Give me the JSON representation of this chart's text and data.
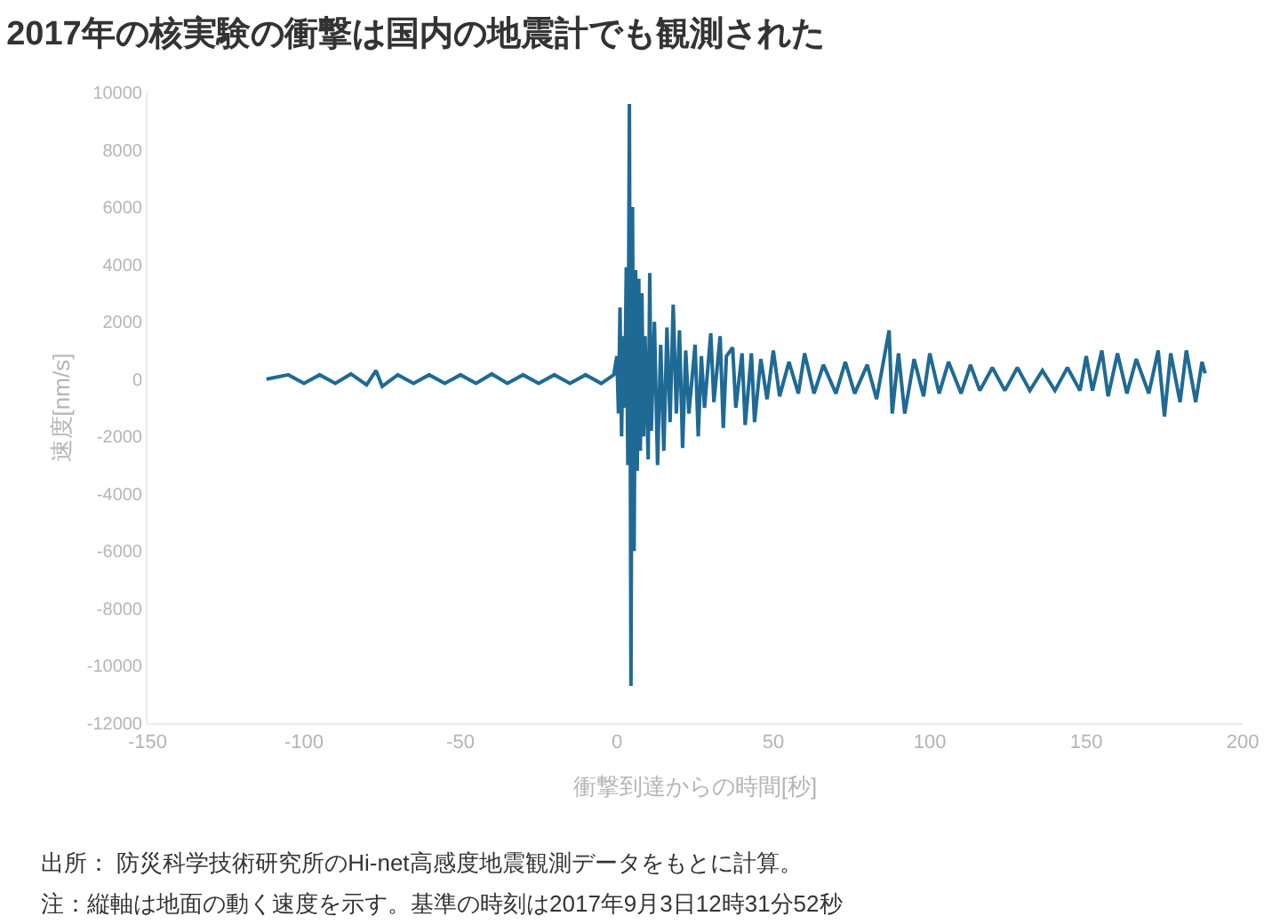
{
  "chart_data": {
    "type": "line",
    "title": "2017年の核実験の衝撃は国内の地震計でも観測された",
    "xlabel": "衝撃到達からの時間[秒]",
    "ylabel": "速度[nm/s]",
    "annotations": [
      "出所： 防災科学技術研究所のHi-net高感度地震観測データをもとに計算。",
      "注：縦軸は地面の動く速度を示す。基準の時刻は2017年9月3日12時31分52秒"
    ],
    "xlim": [
      -150,
      200
    ],
    "xticks": [
      -150,
      -100,
      -50,
      0,
      50,
      100,
      150,
      200
    ],
    "ylim": [
      -12000,
      10000
    ],
    "yticks": [
      -12000,
      -10000,
      -8000,
      -6000,
      -4000,
      -2000,
      0,
      2000,
      4000,
      6000,
      8000,
      10000
    ],
    "marker": "none",
    "line_style": "solid",
    "series": [
      {
        "color": "#1f6a95",
        "x": [
          -112,
          -105,
          -100,
          -95,
          -90,
          -85,
          -80,
          -77,
          -75,
          -70,
          -65,
          -60,
          -55,
          -50,
          -45,
          -40,
          -35,
          -30,
          -25,
          -20,
          -15,
          -10,
          -5,
          -1,
          0,
          0.5,
          1,
          1.5,
          2,
          2.5,
          3,
          3.5,
          4,
          4.5,
          5,
          5.5,
          6,
          6.5,
          7,
          7.5,
          8,
          8.5,
          9,
          10,
          10.5,
          11,
          12,
          13,
          14,
          15,
          16,
          17,
          18,
          19,
          20,
          21,
          22,
          23,
          25,
          26,
          27,
          28,
          30,
          31,
          33,
          34,
          35,
          37,
          38,
          40,
          41,
          43,
          44,
          46,
          48,
          50,
          52,
          55,
          58,
          60,
          63,
          66,
          70,
          73,
          76,
          80,
          83,
          87,
          88,
          90,
          92,
          95,
          98,
          100,
          103,
          106,
          110,
          113,
          116,
          120,
          124,
          128,
          132,
          136,
          140,
          144,
          148,
          150,
          152,
          155,
          157,
          160,
          163,
          166,
          170,
          173,
          175,
          177,
          180,
          182,
          185,
          187,
          188
        ],
        "values": [
          0,
          150,
          -150,
          150,
          -150,
          180,
          -200,
          300,
          -250,
          150,
          -150,
          150,
          -150,
          150,
          -150,
          180,
          -150,
          150,
          -150,
          150,
          -150,
          150,
          -150,
          150,
          800,
          -1200,
          2500,
          -2000,
          1500,
          -1000,
          3900,
          -3000,
          9600,
          -10700,
          6000,
          -6000,
          3800,
          -3200,
          3500,
          -2500,
          3000,
          -2000,
          1500,
          -2800,
          3700,
          -1800,
          2000,
          -3000,
          1200,
          -2500,
          1800,
          -1500,
          2600,
          -1200,
          1700,
          -2400,
          1000,
          -1200,
          1200,
          -2000,
          800,
          -1000,
          1600,
          -800,
          1500,
          -1700,
          800,
          1100,
          -1000,
          900,
          -1600,
          900,
          -1500,
          700,
          -700,
          1000,
          -600,
          600,
          -500,
          900,
          -500,
          500,
          -500,
          600,
          -500,
          500,
          -700,
          1700,
          -1200,
          900,
          -1200,
          700,
          -600,
          900,
          -500,
          600,
          -500,
          500,
          -400,
          400,
          -400,
          400,
          -400,
          300,
          -400,
          400,
          -400,
          800,
          -400,
          1000,
          -600,
          900,
          -500,
          700,
          -500,
          1000,
          -1300,
          900,
          -800,
          1000,
          -800,
          600,
          200
        ]
      }
    ]
  }
}
